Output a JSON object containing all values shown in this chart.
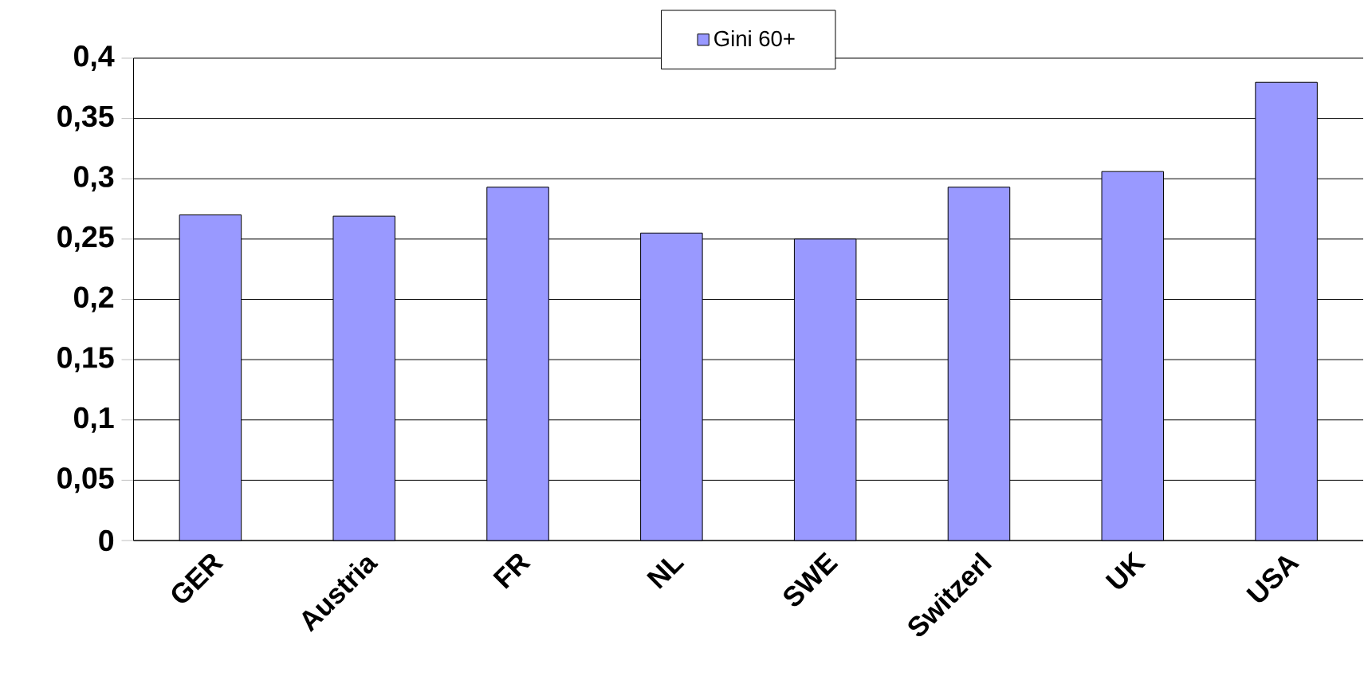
{
  "chart_data": {
    "type": "bar",
    "categories": [
      "GER",
      "Austria",
      "FR",
      "NL",
      "SWE",
      "Switzerl",
      "UK",
      "USA"
    ],
    "series": [
      {
        "name": "Gini 60+",
        "color": "#9999ff",
        "values": [
          0.27,
          0.269,
          0.293,
          0.255,
          0.25,
          0.293,
          0.306,
          0.38
        ]
      }
    ],
    "ylim": [
      0,
      0.4
    ],
    "yticks": [
      {
        "value": 0,
        "label": "0"
      },
      {
        "value": 0.05,
        "label": "0,05"
      },
      {
        "value": 0.1,
        "label": "0,1"
      },
      {
        "value": 0.15,
        "label": "0,15"
      },
      {
        "value": 0.2,
        "label": "0,2"
      },
      {
        "value": 0.25,
        "label": "0,25"
      },
      {
        "value": 0.3,
        "label": "0,3"
      },
      {
        "value": 0.35,
        "label": "0,35"
      },
      {
        "value": 0.4,
        "label": "0,4"
      }
    ],
    "grid": "y",
    "legend": "top"
  }
}
